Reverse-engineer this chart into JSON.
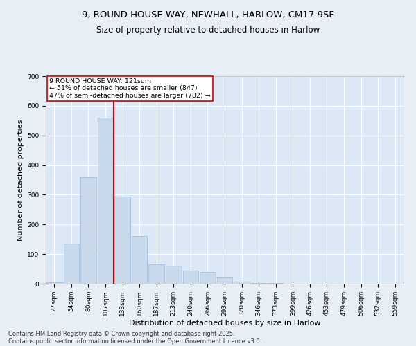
{
  "title_line1": "9, ROUND HOUSE WAY, NEWHALL, HARLOW, CM17 9SF",
  "title_line2": "Size of property relative to detached houses in Harlow",
  "xlabel": "Distribution of detached houses by size in Harlow",
  "ylabel": "Number of detached properties",
  "bar_color": "#c8d9ec",
  "bar_edge_color": "#9ab8d8",
  "vline_color": "#cc0000",
  "annotation_text": "9 ROUND HOUSE WAY: 121sqm\n← 51% of detached houses are smaller (847)\n47% of semi-detached houses are larger (782) →",
  "annotation_box_color": "#ffffff",
  "annotation_box_edgecolor": "#cc0000",
  "footer_text": "Contains HM Land Registry data © Crown copyright and database right 2025.\nContains public sector information licensed under the Open Government Licence v3.0.",
  "categories": [
    "27sqm",
    "54sqm",
    "80sqm",
    "107sqm",
    "133sqm",
    "160sqm",
    "187sqm",
    "213sqm",
    "240sqm",
    "266sqm",
    "293sqm",
    "320sqm",
    "346sqm",
    "373sqm",
    "399sqm",
    "426sqm",
    "453sqm",
    "479sqm",
    "506sqm",
    "532sqm",
    "559sqm"
  ],
  "values": [
    5,
    135,
    360,
    560,
    295,
    160,
    65,
    60,
    45,
    40,
    20,
    8,
    3,
    2,
    0,
    0,
    0,
    0,
    0,
    0,
    0
  ],
  "ylim": [
    0,
    700
  ],
  "yticks": [
    0,
    100,
    200,
    300,
    400,
    500,
    600,
    700
  ],
  "background_color": "#e8eef5",
  "plot_bg_color": "#dce8f5",
  "grid_color": "#ffffff",
  "title_fontsize": 9.5,
  "subtitle_fontsize": 8.5,
  "tick_fontsize": 6.5,
  "ylabel_fontsize": 8,
  "xlabel_fontsize": 8,
  "footer_fontsize": 6,
  "vline_pos": 3.5
}
